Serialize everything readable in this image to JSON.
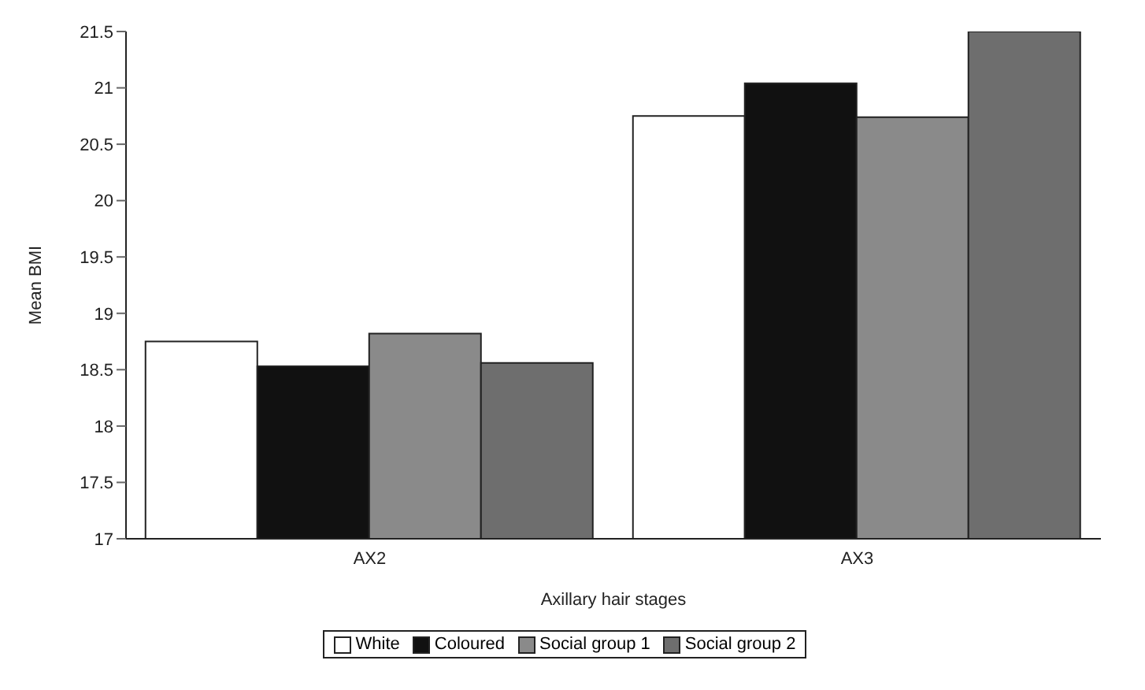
{
  "chart_data": {
    "type": "bar",
    "xlabel": "Axillary hair stages",
    "ylabel": "Mean BMI",
    "categories": [
      "AX2",
      "AX3"
    ],
    "series": [
      {
        "name": "White",
        "color": "#ffffff",
        "values": [
          18.75,
          20.75
        ]
      },
      {
        "name": "Coloured",
        "color": "#111111",
        "values": [
          18.53,
          21.04
        ]
      },
      {
        "name": "Social group 1",
        "color": "#8a8a8a",
        "values": [
          18.82,
          20.74
        ]
      },
      {
        "name": "Social group 2",
        "color": "#6e6e6e",
        "values": [
          18.56,
          21.5
        ]
      }
    ],
    "ylim": [
      17,
      21.5
    ],
    "yticks": [
      17,
      17.5,
      18,
      18.5,
      19,
      19.5,
      20,
      20.5,
      21,
      21.5
    ],
    "grid": false,
    "legend": "bottom"
  }
}
